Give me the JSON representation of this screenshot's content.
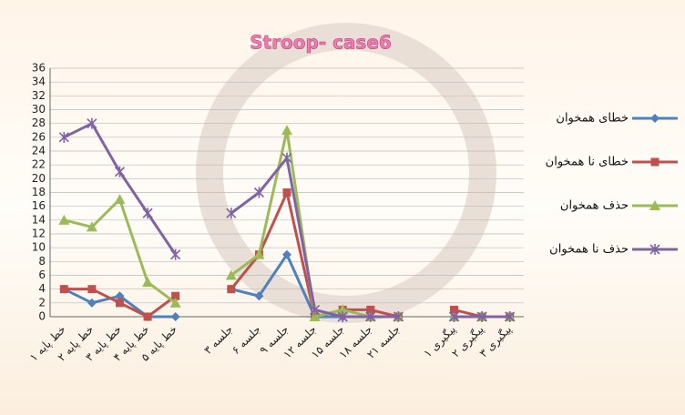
{
  "chart_data": {
    "type": "line",
    "title": "Stroop- case6",
    "categories": [
      "خط پایه ۱",
      "خط پایه ۲",
      "خط پایه ۳",
      "خط پایه ۴",
      "خط پایه ۵",
      null,
      "جلسه ۳",
      "جلسه ۶",
      "جلسه ۹",
      "جلسه ۱۲",
      "جلسه ۱۵",
      "جلسه ۱۸",
      "جلسه ۲۱",
      null,
      "پیگیری ۱",
      "پیگیری ۲",
      "پیگیری ۳"
    ],
    "series": [
      {
        "name": "خطای همخوان",
        "color": "#4f81bd",
        "marker": "diamond",
        "values": [
          4,
          2,
          3,
          0,
          0,
          null,
          4,
          3,
          9,
          0,
          0,
          0,
          0,
          null,
          0,
          0,
          0
        ]
      },
      {
        "name": "خطای نا همخوان",
        "color": "#c0504d",
        "marker": "square",
        "values": [
          4,
          4,
          2,
          0,
          3,
          null,
          4,
          9,
          18,
          0,
          1,
          1,
          0,
          null,
          1,
          0,
          0
        ]
      },
      {
        "name": "حذف همخوان",
        "color": "#9bbb59",
        "marker": "triangle",
        "values": [
          14,
          13,
          17,
          5,
          2,
          null,
          6,
          9,
          27,
          0,
          1,
          0,
          0,
          null,
          0,
          0,
          0
        ]
      },
      {
        "name": "حذف نا همخوان",
        "color": "#8064a2",
        "marker": "star",
        "values": [
          26,
          28,
          21,
          15,
          9,
          null,
          15,
          18,
          23,
          1,
          0,
          0,
          0,
          null,
          0,
          0,
          0
        ]
      }
    ],
    "ylim": [
      0,
      36
    ],
    "yticks": [
      0,
      2,
      4,
      6,
      8,
      10,
      12,
      14,
      16,
      18,
      20,
      22,
      24,
      26,
      28,
      30,
      32,
      34,
      36
    ],
    "grid": true,
    "legend": "right"
  }
}
